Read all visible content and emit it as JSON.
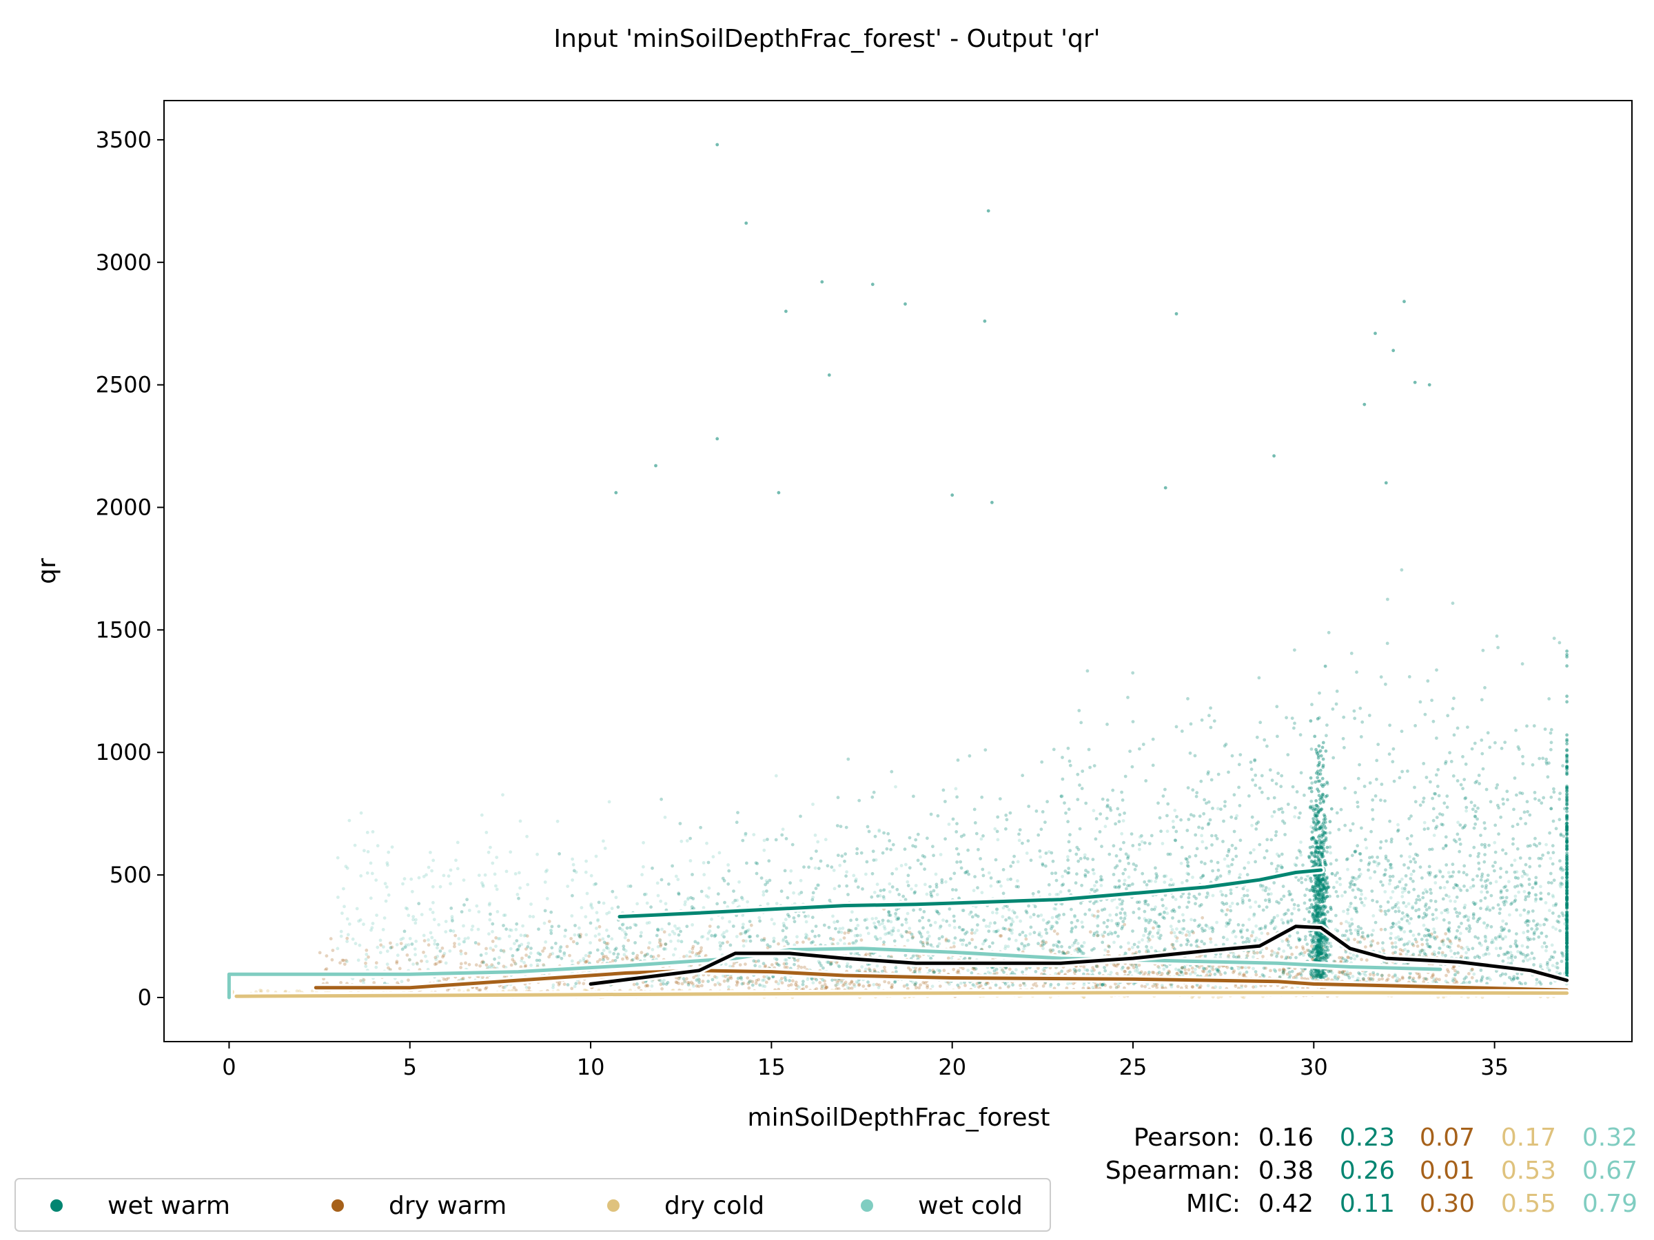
{
  "chart_data": {
    "type": "scatter",
    "title": "Input 'minSoilDepthFrac_forest' - Output 'qr'",
    "xlabel": "minSoilDepthFrac_forest",
    "ylabel": "qr",
    "xlim": [
      -1.8,
      38.8
    ],
    "ylim": [
      -180,
      3660
    ],
    "x_ticks": [
      0,
      5,
      10,
      15,
      20,
      25,
      30,
      35
    ],
    "y_ticks": [
      0,
      500,
      1000,
      1500,
      2000,
      2500,
      3000,
      3500
    ],
    "grid": false,
    "legend_position": "bottom-left, below plot",
    "colors": {
      "wet_warm": "#018571",
      "dry_warm": "#a6611a",
      "dry_cold": "#dfc27d",
      "wet_cold": "#80cdc1",
      "all": "#000000"
    },
    "series": [
      {
        "name": "wet warm",
        "color": "#018571",
        "trend": [
          [
            10.8,
            330
          ],
          [
            13,
            345
          ],
          [
            15,
            360
          ],
          [
            17,
            375
          ],
          [
            19,
            380
          ],
          [
            21,
            390
          ],
          [
            23,
            400
          ],
          [
            25,
            425
          ],
          [
            27,
            450
          ],
          [
            28.5,
            480
          ],
          [
            29.5,
            510
          ],
          [
            30.2,
            520
          ]
        ]
      },
      {
        "name": "dry warm",
        "color": "#a6611a",
        "trend": [
          [
            2.4,
            40
          ],
          [
            5,
            40
          ],
          [
            7,
            60
          ],
          [
            9,
            80
          ],
          [
            11,
            100
          ],
          [
            13,
            110
          ],
          [
            15,
            105
          ],
          [
            17,
            90
          ],
          [
            20,
            80
          ],
          [
            25,
            75
          ],
          [
            29,
            65
          ],
          [
            30,
            55
          ],
          [
            33,
            45
          ],
          [
            37,
            30
          ]
        ]
      },
      {
        "name": "dry cold",
        "color": "#dfc27d",
        "trend": [
          [
            0.2,
            5
          ],
          [
            5,
            8
          ],
          [
            10,
            12
          ],
          [
            15,
            15
          ],
          [
            20,
            18
          ],
          [
            25,
            20
          ],
          [
            30,
            20
          ],
          [
            37,
            18
          ]
        ]
      },
      {
        "name": "wet cold",
        "color": "#80cdc1",
        "trend": [
          [
            0,
            0
          ],
          [
            0,
            95
          ],
          [
            5,
            95
          ],
          [
            8,
            105
          ],
          [
            11,
            130
          ],
          [
            14,
            160
          ],
          [
            15.5,
            195
          ],
          [
            17.5,
            200
          ],
          [
            20,
            185
          ],
          [
            23,
            160
          ],
          [
            26,
            150
          ],
          [
            29,
            140
          ],
          [
            31,
            125
          ],
          [
            33.5,
            115
          ]
        ]
      },
      {
        "name": "all",
        "color": "#000000",
        "trend": [
          [
            10,
            55
          ],
          [
            13,
            110
          ],
          [
            14,
            180
          ],
          [
            15.5,
            180
          ],
          [
            17,
            160
          ],
          [
            19,
            140
          ],
          [
            21,
            140
          ],
          [
            23,
            140
          ],
          [
            25,
            160
          ],
          [
            27,
            190
          ],
          [
            28.5,
            210
          ],
          [
            29.5,
            290
          ],
          [
            30.2,
            285
          ],
          [
            31,
            200
          ],
          [
            32,
            160
          ],
          [
            34,
            145
          ],
          [
            36,
            110
          ],
          [
            37,
            70
          ]
        ]
      }
    ],
    "outliers": [
      [
        13.5,
        3480
      ],
      [
        14.3,
        3160
      ],
      [
        21,
        3210
      ],
      [
        16.4,
        2920
      ],
      [
        17.8,
        2910
      ],
      [
        18.7,
        2830
      ],
      [
        20.9,
        2760
      ],
      [
        26.2,
        2790
      ],
      [
        32.5,
        2840
      ],
      [
        15.4,
        2800
      ],
      [
        31.7,
        2710
      ],
      [
        32.2,
        2640
      ],
      [
        16.6,
        2540
      ],
      [
        32.8,
        2510
      ],
      [
        33.2,
        2500
      ],
      [
        31.4,
        2420
      ],
      [
        13.5,
        2280
      ],
      [
        11.8,
        2170
      ],
      [
        28.9,
        2210
      ],
      [
        10.7,
        2060
      ],
      [
        15.2,
        2060
      ],
      [
        20,
        2050
      ],
      [
        21.1,
        2020
      ],
      [
        25.9,
        2080
      ],
      [
        32,
        2100
      ]
    ],
    "stats": {
      "labels": [
        "Pearson:",
        "Spearman:",
        "MIC:"
      ],
      "rows": [
        [
          "0.16",
          "0.23",
          "0.07",
          "0.17",
          "0.32"
        ],
        [
          "0.38",
          "0.26",
          "0.01",
          "0.53",
          "0.67"
        ],
        [
          "0.42",
          "0.11",
          "0.30",
          "0.55",
          "0.79"
        ]
      ],
      "colors": [
        "#000000",
        "#018571",
        "#a6611a",
        "#dfc27d",
        "#80cdc1"
      ]
    },
    "legend": [
      "wet warm",
      "dry warm",
      "dry cold",
      "wet cold"
    ]
  }
}
